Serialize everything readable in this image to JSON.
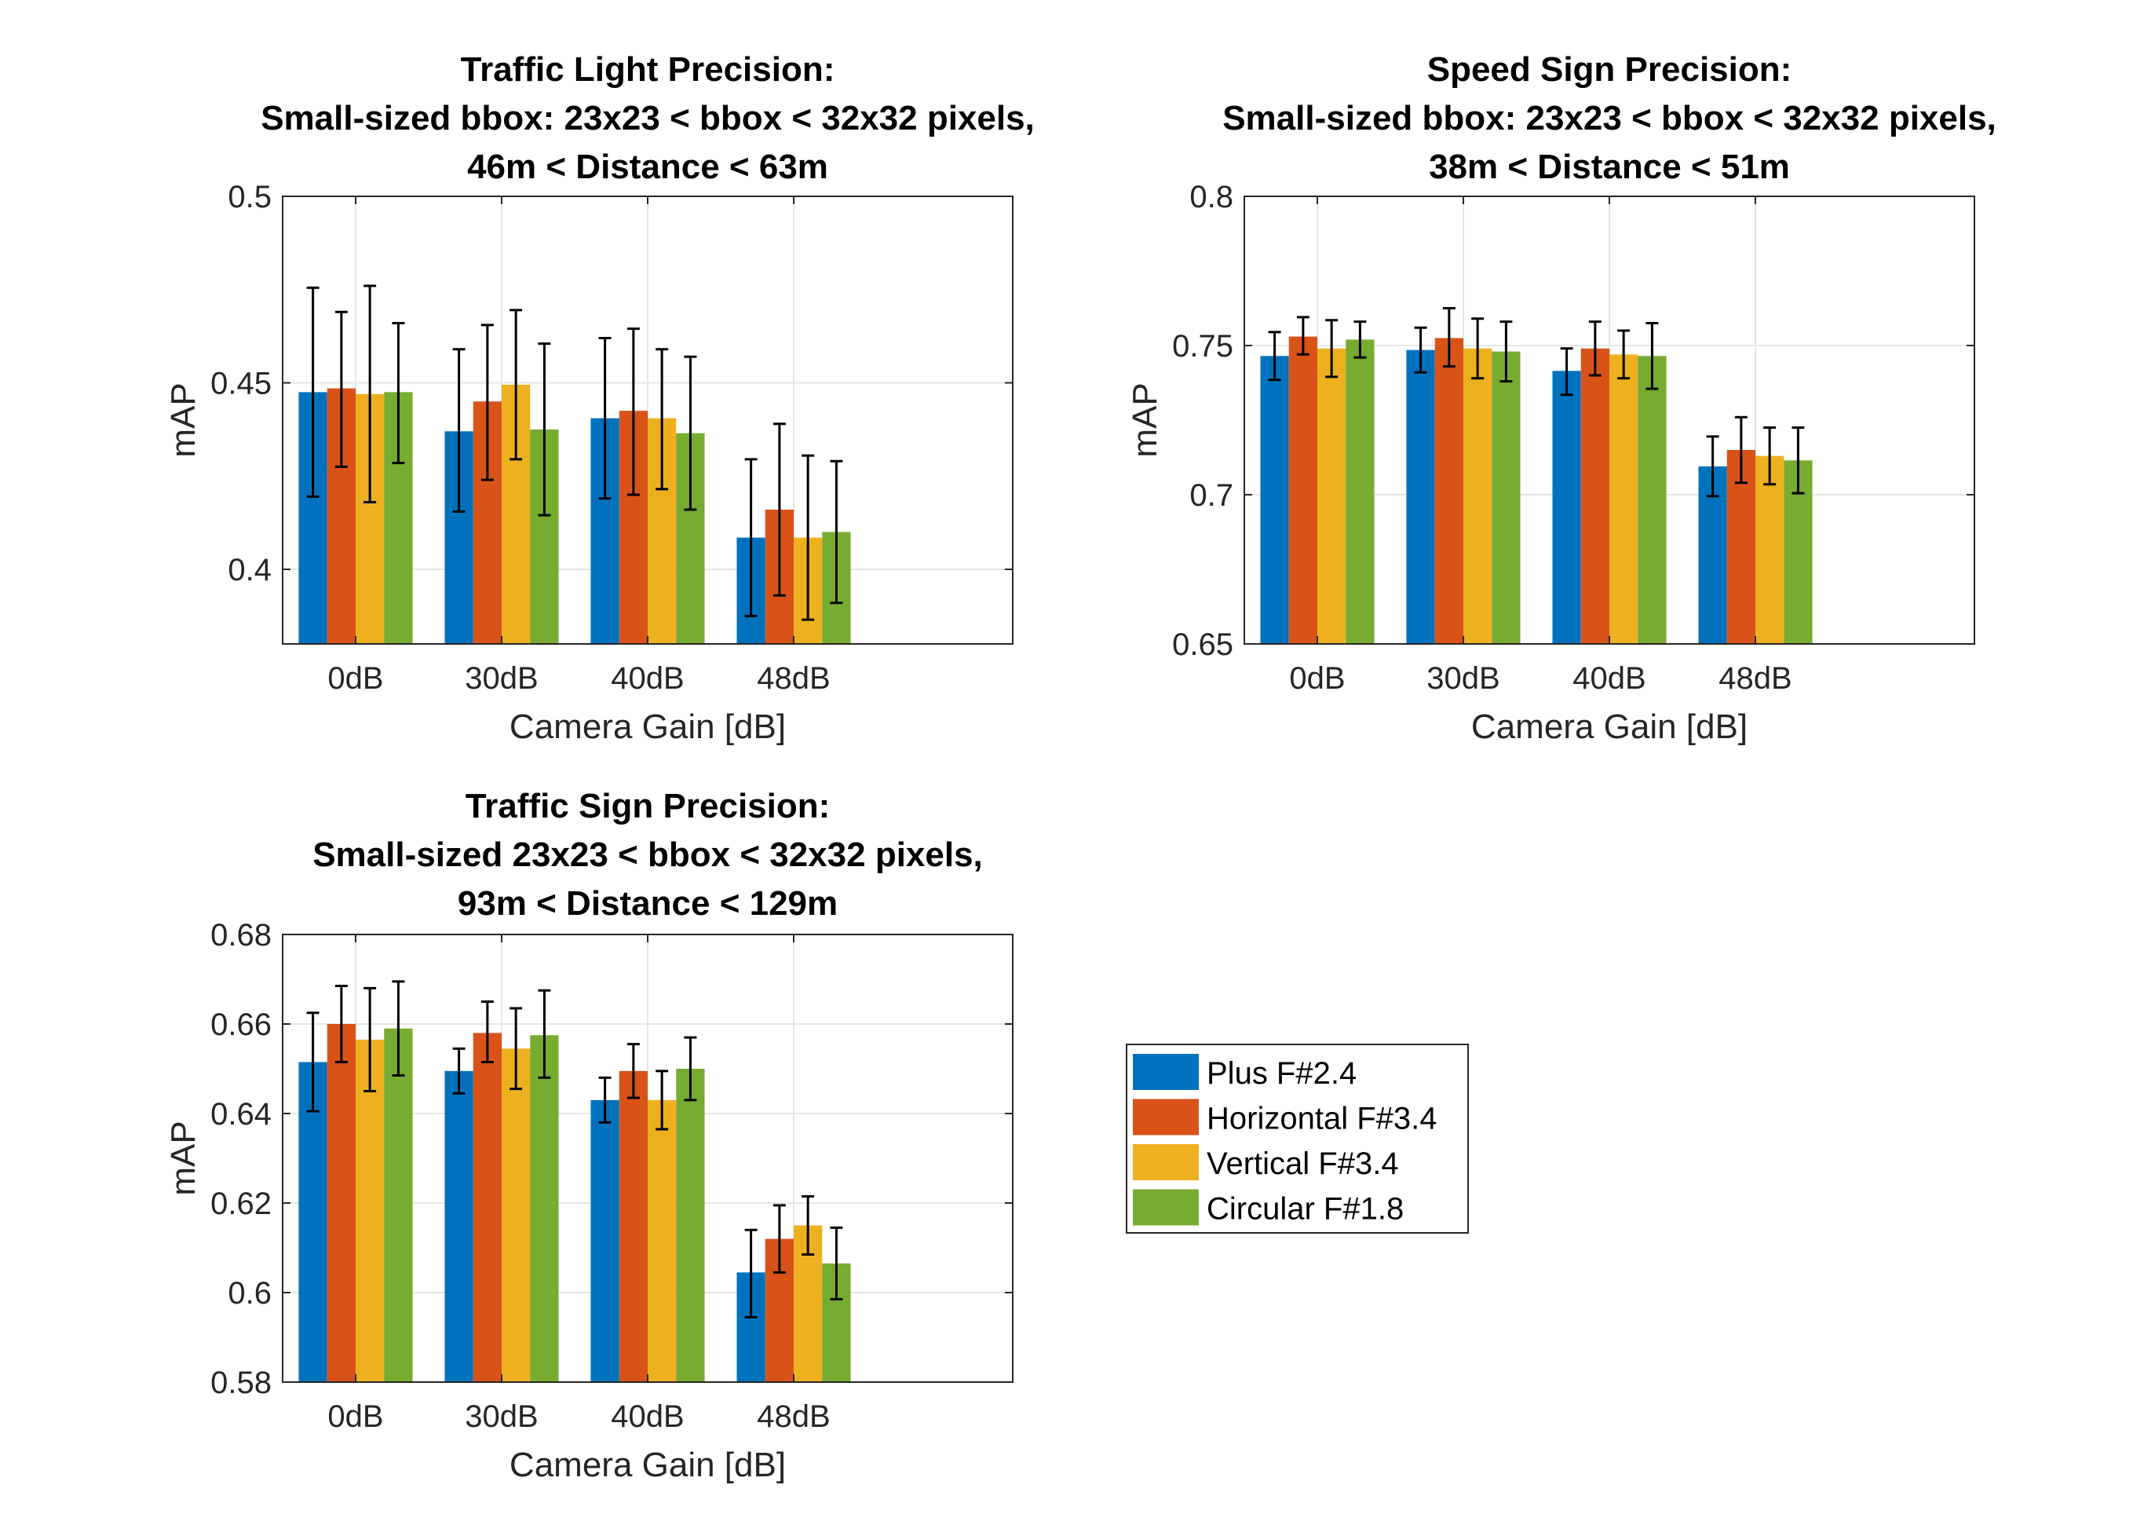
{
  "colors": {
    "series": [
      "#0072BD",
      "#D95319",
      "#EDB120",
      "#77AC30"
    ],
    "grid": "#e6e6e6",
    "axis": "#262626"
  },
  "legend": {
    "entries": [
      "Plus F#2.4",
      "Horizontal F#3.4",
      "Vertical F#3.4",
      "Circular F#1.8"
    ]
  },
  "chart_data": [
    {
      "type": "bar",
      "title_lines": [
        "Traffic Light Precision:",
        "Small-sized bbox: 23x23 < bbox < 32x32 pixels,",
        "46m < Distance <  63m"
      ],
      "xlabel": "Camera Gain [dB]",
      "ylabel": "mAP",
      "categories": [
        "0dB",
        "30dB",
        "40dB",
        "48dB"
      ],
      "ylim": [
        0.38,
        0.5
      ],
      "yticks": [
        0.4,
        0.45,
        0.5
      ],
      "ytick_labels": [
        "0.4",
        "0.45",
        "0.5"
      ],
      "grid": true,
      "series": [
        {
          "name": "Plus F#2.4",
          "values": [
            0.4475,
            0.437,
            0.4405,
            0.4085
          ],
          "err_low": [
            0.4195,
            0.4155,
            0.419,
            0.3875
          ],
          "err_high": [
            0.4755,
            0.459,
            0.462,
            0.4295
          ]
        },
        {
          "name": "Horizontal F#3.4",
          "values": [
            0.4485,
            0.445,
            0.4425,
            0.416
          ],
          "err_low": [
            0.4275,
            0.424,
            0.42,
            0.393
          ],
          "err_high": [
            0.469,
            0.4655,
            0.4645,
            0.439
          ]
        },
        {
          "name": "Vertical F#3.4",
          "values": [
            0.447,
            0.4495,
            0.4405,
            0.4085
          ],
          "err_low": [
            0.418,
            0.4295,
            0.4215,
            0.3865
          ],
          "err_high": [
            0.476,
            0.4695,
            0.459,
            0.4305
          ]
        },
        {
          "name": "Circular F#1.8",
          "values": [
            0.4475,
            0.4375,
            0.4365,
            0.41
          ],
          "err_low": [
            0.4285,
            0.4145,
            0.416,
            0.391
          ],
          "err_high": [
            0.466,
            0.4605,
            0.457,
            0.429
          ]
        }
      ]
    },
    {
      "type": "bar",
      "title_lines": [
        "Speed Sign Precision:",
        "Small-sized bbox: 23x23 < bbox < 32x32 pixels,",
        "38m < Distance <  51m"
      ],
      "xlabel": "Camera Gain [dB]",
      "ylabel": "mAP",
      "categories": [
        "0dB",
        "30dB",
        "40dB",
        "48dB"
      ],
      "ylim": [
        0.65,
        0.8
      ],
      "yticks": [
        0.65,
        0.7,
        0.75,
        0.8
      ],
      "ytick_labels": [
        "0.65",
        "0.7",
        "0.75",
        "0.8"
      ],
      "grid": true,
      "series": [
        {
          "name": "Plus F#2.4",
          "values": [
            0.7465,
            0.7485,
            0.7415,
            0.7095
          ],
          "err_low": [
            0.7385,
            0.741,
            0.7335,
            0.6995
          ],
          "err_high": [
            0.7545,
            0.756,
            0.749,
            0.7195
          ]
        },
        {
          "name": "Horizontal F#3.4",
          "values": [
            0.753,
            0.7525,
            0.749,
            0.715
          ],
          "err_low": [
            0.747,
            0.743,
            0.74,
            0.704
          ],
          "err_high": [
            0.7595,
            0.7625,
            0.758,
            0.726
          ]
        },
        {
          "name": "Vertical F#3.4",
          "values": [
            0.749,
            0.749,
            0.747,
            0.713
          ],
          "err_low": [
            0.7395,
            0.739,
            0.739,
            0.7035
          ],
          "err_high": [
            0.7585,
            0.759,
            0.755,
            0.7225
          ]
        },
        {
          "name": "Circular F#1.8",
          "values": [
            0.752,
            0.748,
            0.7465,
            0.7115
          ],
          "err_low": [
            0.746,
            0.738,
            0.7355,
            0.7005
          ],
          "err_high": [
            0.758,
            0.758,
            0.7575,
            0.7225
          ]
        }
      ]
    },
    {
      "type": "bar",
      "title_lines": [
        "Traffic Sign Precision:",
        "Small-sized 23x23 < bbox < 32x32 pixels,",
        "93m < Distance <  129m"
      ],
      "xlabel": "Camera Gain [dB]",
      "ylabel": "mAP",
      "categories": [
        "0dB",
        "30dB",
        "40dB",
        "48dB"
      ],
      "ylim": [
        0.58,
        0.68
      ],
      "yticks": [
        0.58,
        0.6,
        0.62,
        0.64,
        0.66,
        0.68
      ],
      "ytick_labels": [
        "0.58",
        "0.6",
        "0.62",
        "0.64",
        "0.66",
        "0.68"
      ],
      "grid": true,
      "series": [
        {
          "name": "Plus F#2.4",
          "values": [
            0.6515,
            0.6495,
            0.643,
            0.6045
          ],
          "err_low": [
            0.6405,
            0.6445,
            0.638,
            0.5945
          ],
          "err_high": [
            0.6625,
            0.6545,
            0.648,
            0.614
          ]
        },
        {
          "name": "Horizontal F#3.4",
          "values": [
            0.66,
            0.658,
            0.6495,
            0.612
          ],
          "err_low": [
            0.6515,
            0.6515,
            0.6435,
            0.6045
          ],
          "err_high": [
            0.6685,
            0.665,
            0.6555,
            0.6195
          ]
        },
        {
          "name": "Vertical F#3.4",
          "values": [
            0.6565,
            0.6545,
            0.643,
            0.615
          ],
          "err_low": [
            0.645,
            0.6455,
            0.6365,
            0.6085
          ],
          "err_high": [
            0.668,
            0.6635,
            0.6495,
            0.6215
          ]
        },
        {
          "name": "Circular F#1.8",
          "values": [
            0.659,
            0.6575,
            0.65,
            0.6065
          ],
          "err_low": [
            0.6485,
            0.648,
            0.643,
            0.5985
          ],
          "err_high": [
            0.6695,
            0.6675,
            0.657,
            0.6145
          ]
        }
      ]
    }
  ]
}
